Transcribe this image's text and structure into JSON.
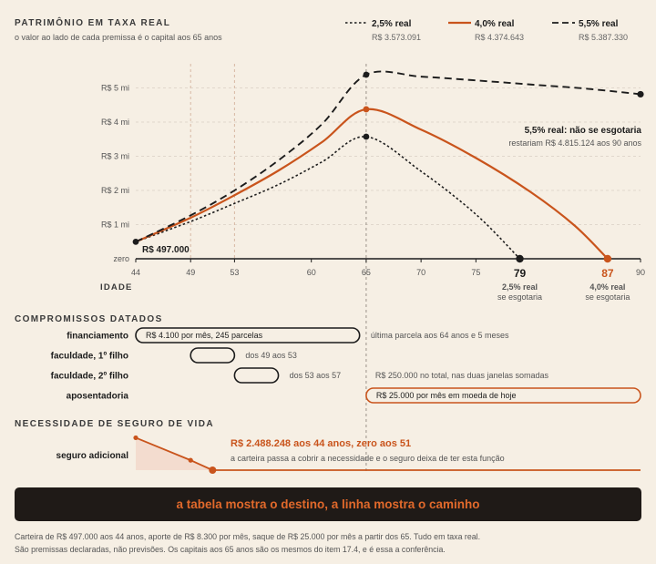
{
  "header": {
    "title": "PATRIMÔNIO EM TAXA REAL",
    "subtitle": "o valor ao lado de cada premissa é o capital aos 65 anos"
  },
  "legend": [
    {
      "name": "2,5% real",
      "value": "R$ 3.573.091",
      "style": "dotted",
      "color": "#1c1c1c"
    },
    {
      "name": "4,0% real",
      "value": "R$ 4.374.643",
      "style": "solid",
      "color": "#c9541c"
    },
    {
      "name": "5,5% real",
      "value": "R$ 5.387.330",
      "style": "dashed",
      "color": "#1c1c1c"
    }
  ],
  "chart_data": {
    "type": "line",
    "xlabel": "IDADE",
    "x_ticks": [
      44,
      49,
      53,
      60,
      65,
      70,
      75,
      79,
      87,
      90
    ],
    "x_tick_labels": [
      "44",
      "49",
      "53",
      "60",
      "65",
      "70",
      "75",
      "79",
      "87",
      "90"
    ],
    "y_ticks": [
      0,
      1000000,
      2000000,
      3000000,
      4000000,
      5000000
    ],
    "y_tick_labels": [
      "zero",
      "R$ 1 mi",
      "R$ 2 mi",
      "R$ 3 mi",
      "R$ 4 mi",
      "R$ 5 mi"
    ],
    "xlim": [
      44,
      90
    ],
    "ylim": [
      0,
      5600000
    ],
    "start_label": "R$ 497.000",
    "reference_lines": [
      49,
      53,
      65
    ],
    "series": [
      {
        "name": "2,5% real",
        "color": "#1c1c1c",
        "dash": "dotted",
        "x": [
          44,
          49,
          53,
          57,
          61,
          65,
          70,
          75,
          79
        ],
        "y": [
          497000,
          1090000,
          1620000,
          2170000,
          2840000,
          3573091,
          2560000,
          1300000,
          0
        ]
      },
      {
        "name": "4,0% real",
        "color": "#c9541c",
        "dash": "solid",
        "x": [
          44,
          49,
          53,
          57,
          61,
          65,
          70,
          75,
          80,
          84,
          87
        ],
        "y": [
          497000,
          1200000,
          1860000,
          2580000,
          3420000,
          4374643,
          3780000,
          2950000,
          1950000,
          970000,
          0
        ]
      },
      {
        "name": "5,5% real",
        "color": "#1c1c1c",
        "dash": "dashed",
        "x": [
          44,
          49,
          53,
          57,
          61,
          65,
          70,
          75,
          80,
          85,
          90
        ],
        "y": [
          497000,
          1270000,
          2000000,
          2880000,
          3950000,
          5387330,
          5330000,
          5220000,
          5100000,
          4980000,
          4815124
        ]
      }
    ],
    "end_markers": [
      {
        "x": 79,
        "label": "79",
        "note_line1": "2,5% real",
        "note_line2": "se esgotaria",
        "color": "#1c1c1c"
      },
      {
        "x": 87,
        "label": "87",
        "note_line1": "4,0% real",
        "note_line2": "se esgotaria",
        "color": "#c9541c"
      }
    ],
    "annotation": {
      "title": "5,5% real: não se esgotaria",
      "text": "restariam R$ 4.815.124 aos 90 anos"
    }
  },
  "commitments": {
    "title": "COMPROMISSOS DATADOS",
    "rows": [
      {
        "label": "financiamento",
        "start": 44,
        "end": 64.4,
        "bar_text": "R$ 4.100 por mês, 245 parcelas",
        "note": "última parcela aos 64 anos e 5 meses",
        "color": "#1c1c1c"
      },
      {
        "label": "faculdade, 1º filho",
        "start": 49,
        "end": 53,
        "bar_text": "",
        "note": "dos 49 aos 53",
        "color": "#1c1c1c"
      },
      {
        "label": "faculdade, 2º filho",
        "start": 53,
        "end": 57,
        "bar_text": "",
        "note": "dos 53 aos 57",
        "extra_note": "R$ 250.000 no total, nas duas janelas somadas",
        "color": "#1c1c1c"
      },
      {
        "label": "aposentadoria",
        "start": 65,
        "end": 90,
        "bar_text": "R$ 25.000 por mês em moeda de hoje",
        "note": "",
        "color": "#c9541c"
      }
    ]
  },
  "insurance": {
    "title": "NECESSIDADE DE SEGURO DE VIDA",
    "label": "seguro adicional",
    "headline": "R$ 2.488.248 aos 44 anos, zero aos 51",
    "text": "a carteira passa a cobrir a necessidade e o seguro deixa de ter esta função",
    "x": [
      44,
      49,
      51
    ],
    "y": [
      2488248,
      760000,
      0
    ]
  },
  "banner": "a tabela mostra o destino, a linha mostra o caminho",
  "footer": [
    "Carteira de R$ 497.000 aos 44 anos, aporte de R$ 8.300 por mês, saque de R$ 25.000 por mês a partir dos 65. Tudo em taxa real.",
    "São premissas declaradas, não previsões. Os capitais aos 65 anos são os mesmos do item 17.4, e é essa a conferência."
  ]
}
